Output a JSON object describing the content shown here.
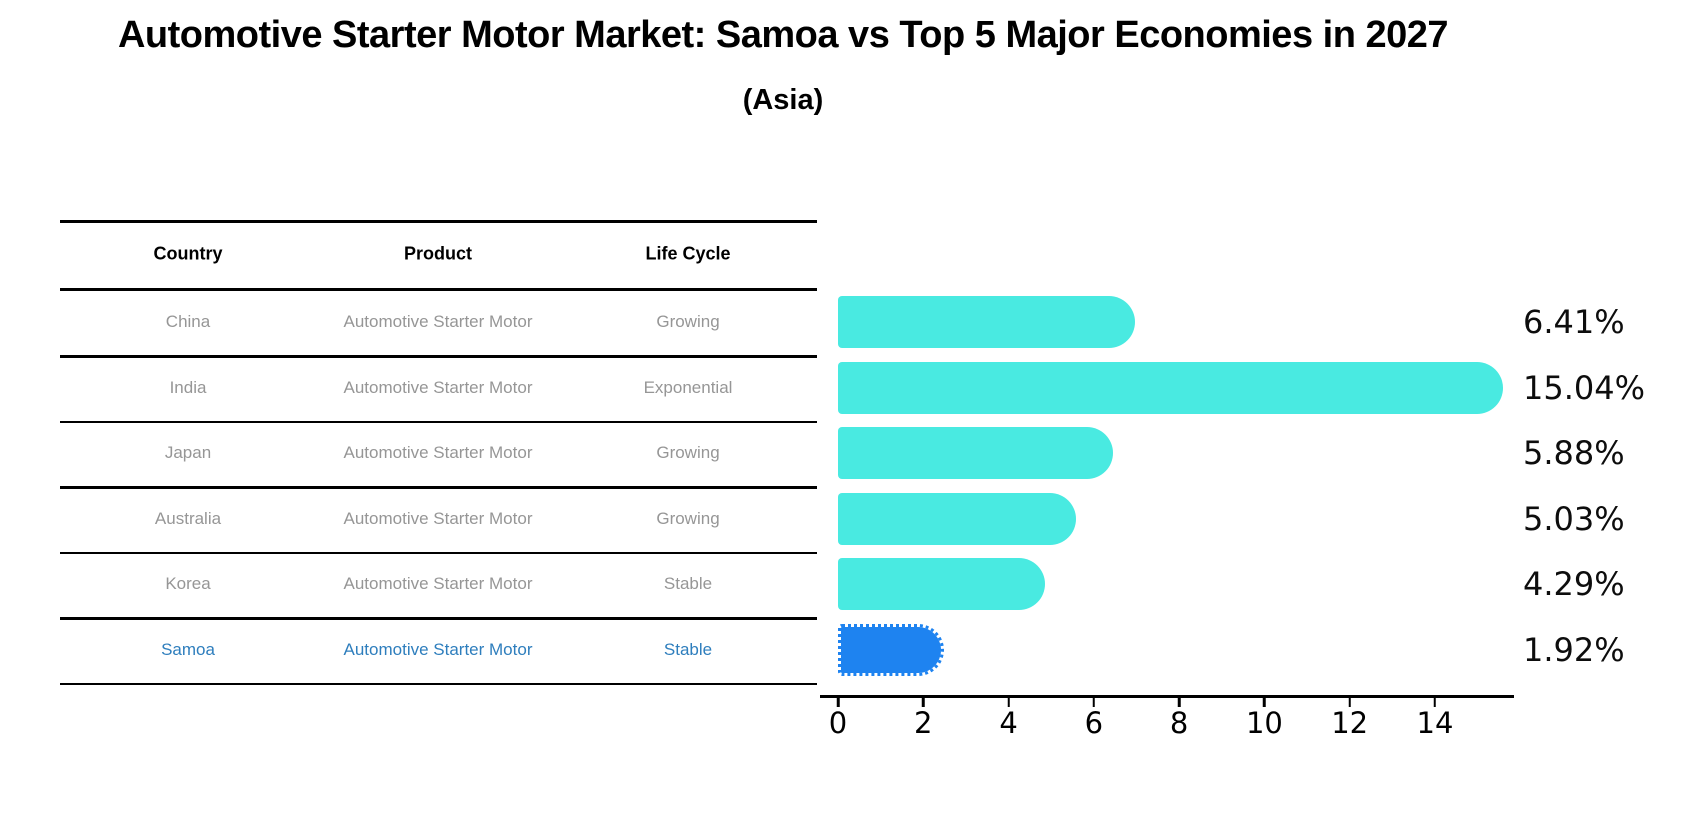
{
  "title": "Automotive Starter Motor Market: Samoa vs Top 5 Major Economies in 2027",
  "subtitle": "(Asia)",
  "table": {
    "headers": [
      "Country",
      "Product",
      "Life Cycle"
    ],
    "rows": [
      {
        "country": "China",
        "product": "Automotive Starter Motor",
        "life_cycle": "Growing",
        "highlight": false
      },
      {
        "country": "India",
        "product": "Automotive Starter Motor",
        "life_cycle": "Exponential",
        "highlight": false
      },
      {
        "country": "Japan",
        "product": "Automotive Starter Motor",
        "life_cycle": "Growing",
        "highlight": false
      },
      {
        "country": "Australia",
        "product": "Automotive Starter Motor",
        "life_cycle": "Growing",
        "highlight": false
      },
      {
        "country": "Korea",
        "product": "Automotive Starter Motor",
        "life_cycle": "Stable",
        "highlight": false
      },
      {
        "country": "Samoa",
        "product": "Automotive Starter Motor",
        "life_cycle": "Stable",
        "highlight": true
      }
    ]
  },
  "chart_data": {
    "type": "bar",
    "orientation": "horizontal",
    "title": "Automotive Starter Motor Market: Samoa vs Top 5 Major Economies in 2027 (Asia)",
    "categories": [
      "China",
      "India",
      "Japan",
      "Australia",
      "Korea",
      "Samoa"
    ],
    "values": [
      6.41,
      15.04,
      5.88,
      5.03,
      4.29,
      1.92
    ],
    "value_labels": [
      "6.41%",
      "15.04%",
      "5.88%",
      "5.03%",
      "4.29%",
      "1.92%"
    ],
    "x_ticks": [
      "0",
      "2",
      "4",
      "6",
      "8",
      "10",
      "12",
      "14"
    ],
    "xlim": [
      0,
      15.9
    ],
    "grid": false,
    "legend": false,
    "highlight_index": 5,
    "bar_color": "#49eae1",
    "highlight_bar_color": "#1e83f0",
    "highlight_text_color": "#2e7ebd",
    "row_text_color": "#969696"
  }
}
